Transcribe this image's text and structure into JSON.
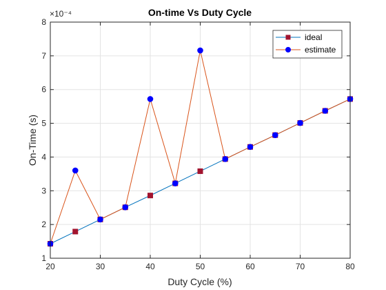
{
  "chart_data": {
    "type": "line",
    "title": "On-time Vs Duty Cycle",
    "xlabel": "Duty Cycle (%)",
    "ylabel": "On-Time (s)",
    "y_exponent_label": "×10⁻⁴",
    "xlim": [
      20,
      80
    ],
    "ylim": [
      1,
      8
    ],
    "y_scale_factor": 0.0001,
    "xticks": [
      20,
      30,
      40,
      50,
      60,
      70,
      80
    ],
    "yticks": [
      1,
      2,
      3,
      4,
      5,
      6,
      7,
      8
    ],
    "grid": true,
    "legend_position": "top-right",
    "x": [
      20,
      25,
      30,
      35,
      40,
      45,
      50,
      55,
      60,
      65,
      70,
      75,
      80
    ],
    "series": [
      {
        "name": "ideal",
        "color": "#0072BD",
        "marker": "square",
        "marker_color": "#A2142F",
        "values": [
          1.43,
          1.79,
          2.15,
          2.51,
          2.86,
          3.22,
          3.58,
          3.94,
          4.3,
          4.65,
          5.01,
          5.37,
          5.72
        ]
      },
      {
        "name": "estimate",
        "color": "#D95319",
        "marker": "circle",
        "marker_color": "#0000FF",
        "values": [
          1.43,
          3.6,
          2.15,
          2.51,
          5.72,
          3.22,
          7.16,
          3.94,
          4.3,
          4.65,
          5.01,
          5.37,
          5.72
        ]
      }
    ]
  }
}
